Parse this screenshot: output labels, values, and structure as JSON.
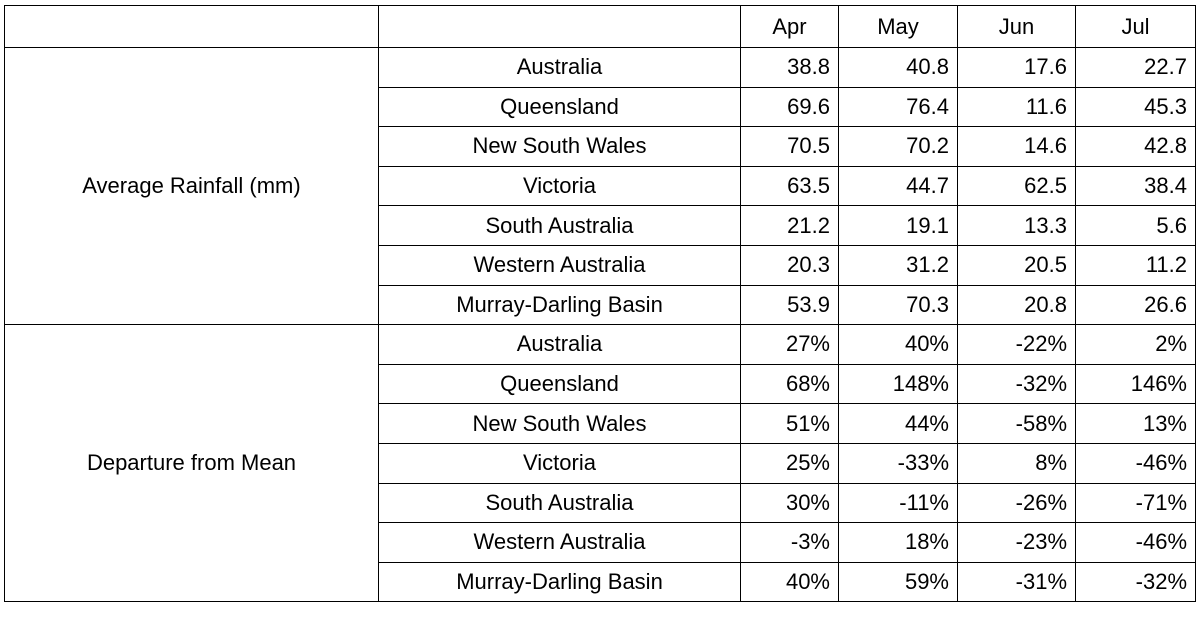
{
  "header": {
    "columns": [
      "Apr",
      "May",
      "Jun",
      "Jul"
    ]
  },
  "groups": [
    {
      "label": "Average Rainfall (mm)",
      "rows": [
        {
          "region": "Australia",
          "values": [
            "38.8",
            "40.8",
            "17.6",
            "22.7"
          ]
        },
        {
          "region": "Queensland",
          "values": [
            "69.6",
            "76.4",
            "11.6",
            "45.3"
          ]
        },
        {
          "region": "New South Wales",
          "values": [
            "70.5",
            "70.2",
            "14.6",
            "42.8"
          ]
        },
        {
          "region": "Victoria",
          "values": [
            "63.5",
            "44.7",
            "62.5",
            "38.4"
          ]
        },
        {
          "region": "South Australia",
          "values": [
            "21.2",
            "19.1",
            "13.3",
            "5.6"
          ]
        },
        {
          "region": "Western Australia",
          "values": [
            "20.3",
            "31.2",
            "20.5",
            "11.2"
          ]
        },
        {
          "region": "Murray-Darling Basin",
          "values": [
            "53.9",
            "70.3",
            "20.8",
            "26.6"
          ]
        }
      ]
    },
    {
      "label": "Departure from Mean",
      "rows": [
        {
          "region": "Australia",
          "values": [
            "27%",
            "40%",
            "-22%",
            "2%"
          ]
        },
        {
          "region": "Queensland",
          "values": [
            "68%",
            "148%",
            "-32%",
            "146%"
          ]
        },
        {
          "region": "New South Wales",
          "values": [
            "51%",
            "44%",
            "-58%",
            "13%"
          ]
        },
        {
          "region": "Victoria",
          "values": [
            "25%",
            "-33%",
            "8%",
            "-46%"
          ]
        },
        {
          "region": "South Australia",
          "values": [
            "30%",
            "-11%",
            "-26%",
            "-71%"
          ]
        },
        {
          "region": "Western Australia",
          "values": [
            "-3%",
            "18%",
            "-23%",
            "-46%"
          ]
        },
        {
          "region": "Murray-Darling Basin",
          "values": [
            "40%",
            "59%",
            "-31%",
            "-32%"
          ]
        }
      ]
    }
  ]
}
